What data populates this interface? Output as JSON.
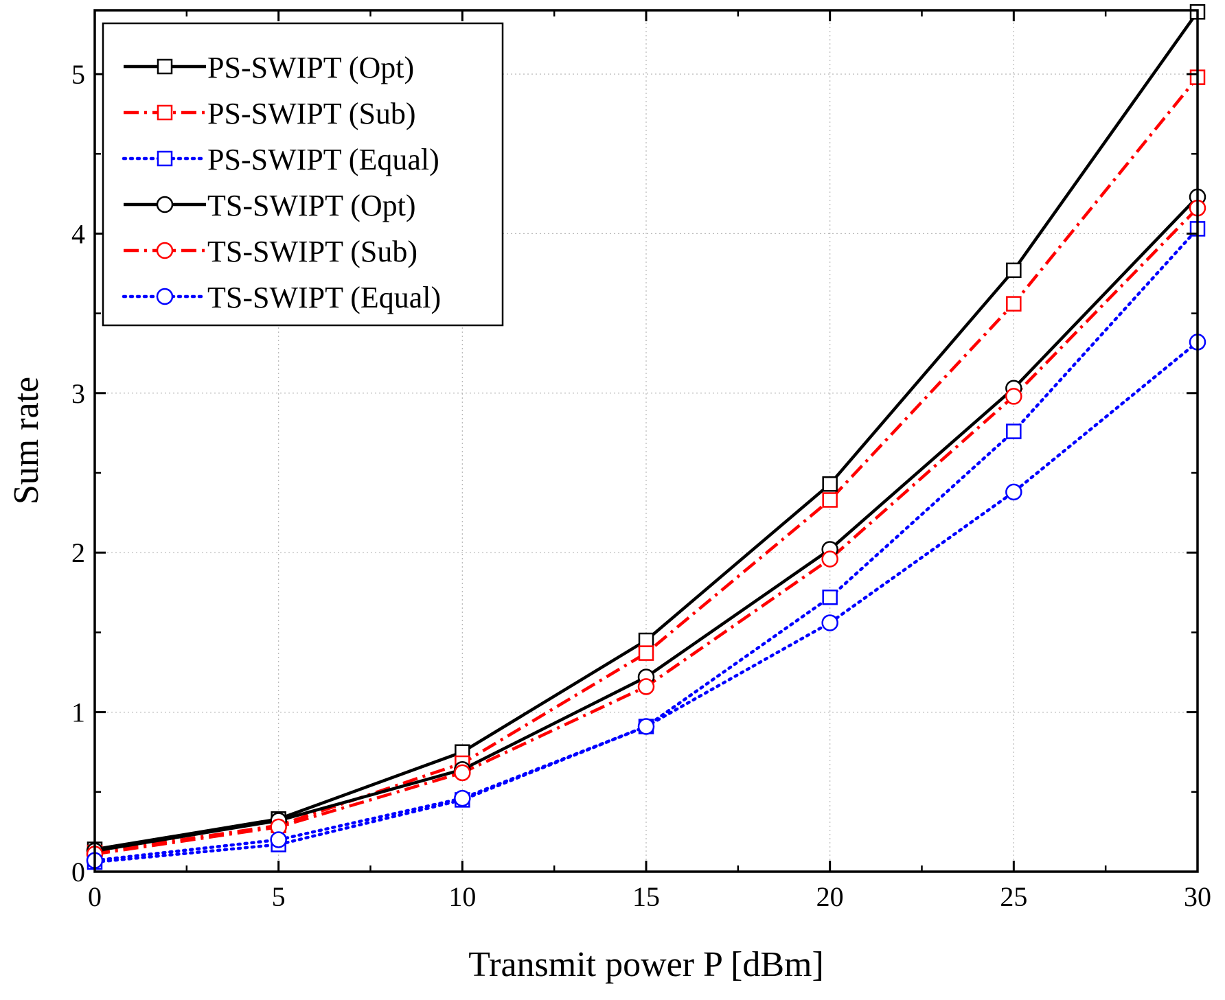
{
  "chart_data": {
    "type": "line",
    "title": "",
    "xlabel": "Transmit power P [dBm]",
    "ylabel": "Sum rate",
    "x": [
      0,
      5,
      10,
      15,
      20,
      25,
      30
    ],
    "xlim": [
      0,
      30
    ],
    "ylim": [
      0,
      5.4
    ],
    "xticks": [
      0,
      5,
      10,
      15,
      20,
      25,
      30
    ],
    "yticks": [
      0,
      1,
      2,
      3,
      4,
      5
    ],
    "grid": true,
    "legend_position": "top-left",
    "series": [
      {
        "name": "PS-SWIPT (Opt)",
        "color": "#000000",
        "dash": "solid",
        "marker": "square",
        "values": [
          0.14,
          0.33,
          0.75,
          1.45,
          2.43,
          3.77,
          5.39
        ]
      },
      {
        "name": "PS-SWIPT (Sub)",
        "color": "#ff0000",
        "dash": "dashdot",
        "marker": "square",
        "values": [
          0.12,
          0.29,
          0.68,
          1.37,
          2.33,
          3.56,
          4.98
        ]
      },
      {
        "name": "PS-SWIPT (Equal)",
        "color": "#0000ff",
        "dash": "dotted",
        "marker": "square",
        "values": [
          0.06,
          0.17,
          0.45,
          0.91,
          1.72,
          2.76,
          4.03
        ]
      },
      {
        "name": "TS-SWIPT (Opt)",
        "color": "#000000",
        "dash": "solid",
        "marker": "circle",
        "values": [
          0.13,
          0.32,
          0.64,
          1.22,
          2.02,
          3.03,
          4.23
        ]
      },
      {
        "name": "TS-SWIPT (Sub)",
        "color": "#ff0000",
        "dash": "dashdot",
        "marker": "circle",
        "values": [
          0.11,
          0.28,
          0.62,
          1.16,
          1.96,
          2.98,
          4.16
        ]
      },
      {
        "name": "TS-SWIPT (Equal)",
        "color": "#0000ff",
        "dash": "dotted",
        "marker": "circle",
        "values": [
          0.07,
          0.2,
          0.46,
          0.91,
          1.56,
          2.38,
          3.32
        ]
      }
    ]
  }
}
